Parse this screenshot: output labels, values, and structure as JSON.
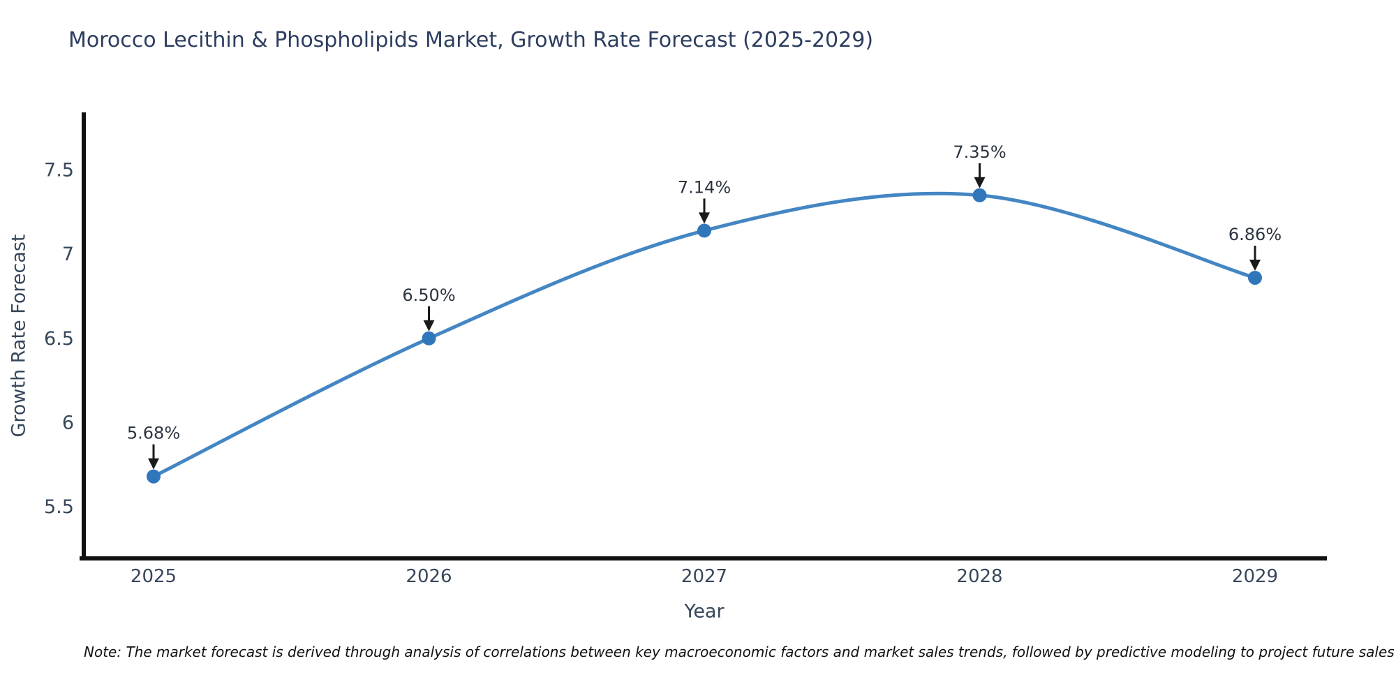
{
  "title": "Morocco Lecithin & Phospholipids Market, Growth Rate Forecast (2025-2029)",
  "note": {
    "text": "Note: The market forecast is derived through analysis of correlations between key macroeconomic factors and market sales trends, followed by predictive modeling to project future sales"
  },
  "chart_data": {
    "type": "line",
    "title": "Morocco Lecithin & Phospholipids Market, Growth Rate Forecast (2025-2029)",
    "xlabel": "Year",
    "ylabel": "Growth Rate Forecast",
    "categories": [
      "2025",
      "2026",
      "2027",
      "2028",
      "2029"
    ],
    "values": [
      5.68,
      6.5,
      7.14,
      7.35,
      6.86
    ],
    "point_labels": [
      "5.68%",
      "6.50%",
      "7.14%",
      "7.35%",
      "6.86%"
    ],
    "yticks": {
      "values": [
        5.5,
        6,
        6.5,
        7,
        7.5
      ],
      "labels": [
        "5.5",
        "6",
        "6.5",
        "7",
        "7.5"
      ]
    },
    "ylim": [
      5.19,
      7.84
    ],
    "grid": false,
    "legend": false,
    "smooth_curve": true,
    "annotation_arrows": "down-to-point",
    "colors": {
      "line": "#4486c3",
      "marker": "#3076bb",
      "axis": "#111111",
      "title_text": "#2d3e5f",
      "tick_text": "#37475a",
      "annotation_text": "#2b3440",
      "arrow": "#1a1a1a",
      "background": "#ffffff"
    }
  }
}
